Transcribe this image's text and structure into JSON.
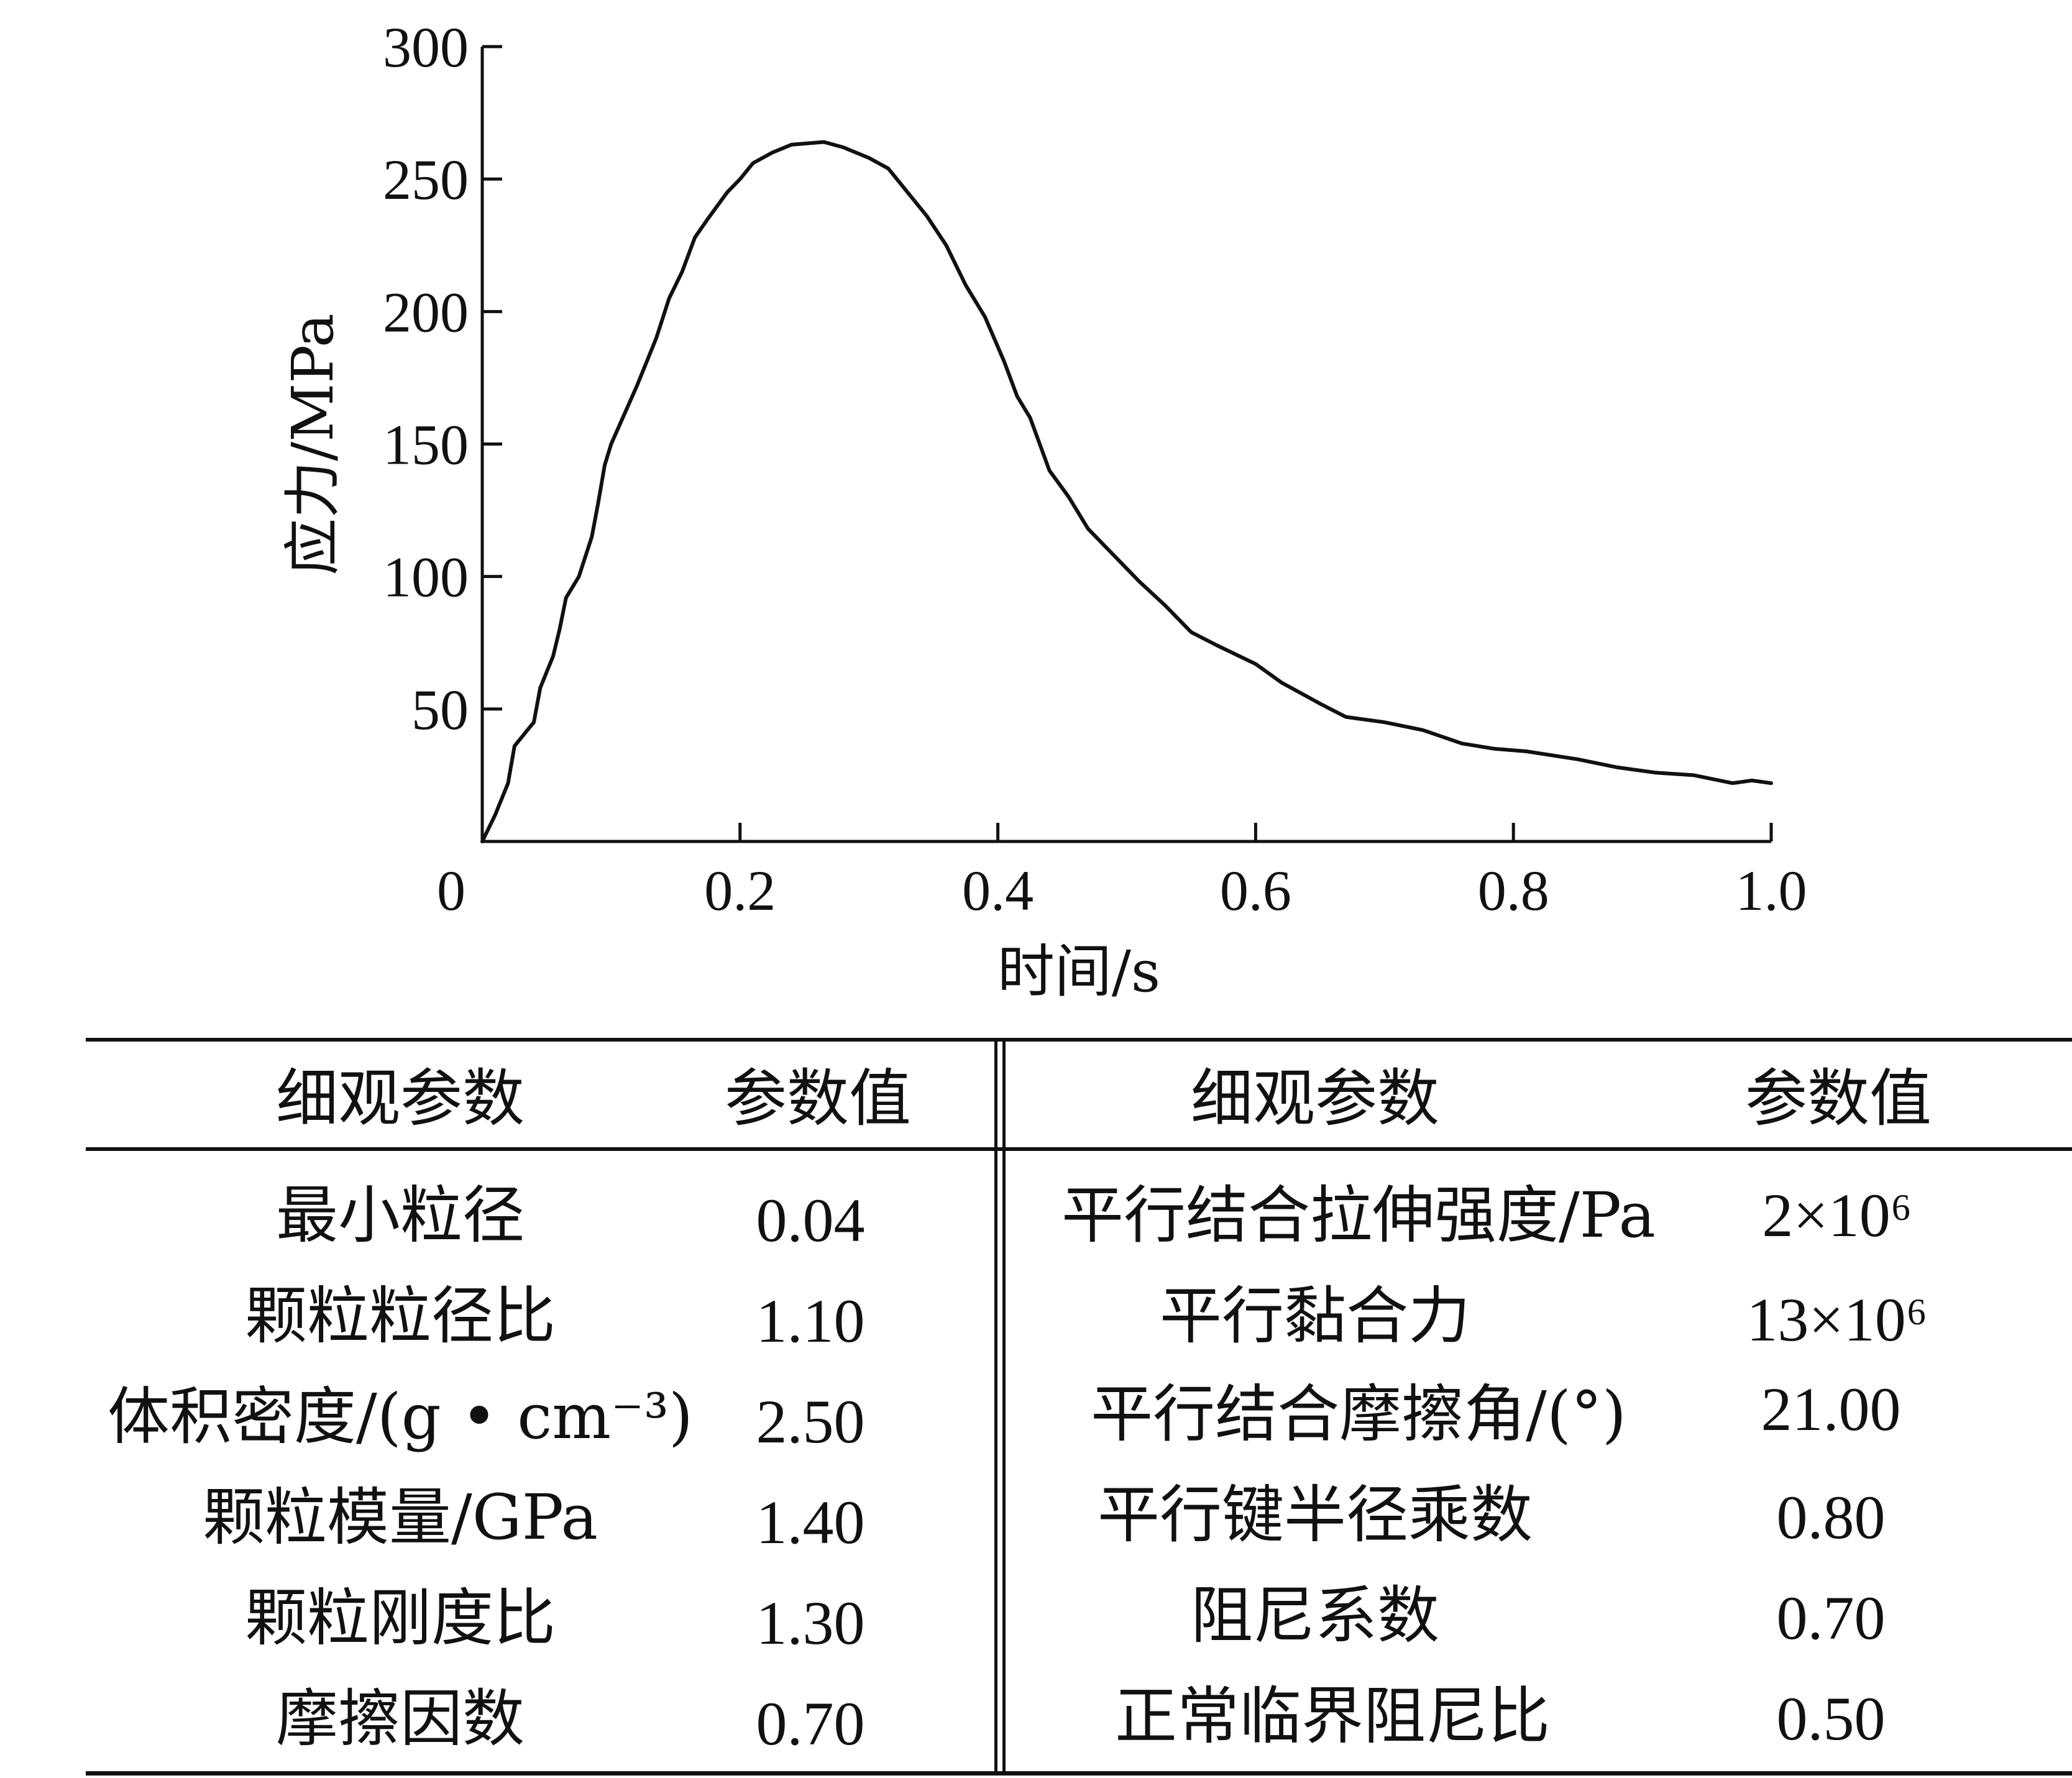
{
  "chart_data": {
    "type": "line",
    "title": "",
    "xlabel": "时间/s",
    "ylabel": "应力/MPa",
    "xlim": [
      0,
      1.0
    ],
    "ylim": [
      0,
      300
    ],
    "x_ticks": [
      0,
      0.2,
      0.4,
      0.6,
      0.8,
      1.0
    ],
    "x_tick_labels": [
      "0",
      "0.2",
      "0.4",
      "0.6",
      "0.8",
      "1.0"
    ],
    "y_ticks": [
      50,
      100,
      150,
      200,
      250,
      300
    ],
    "y_tick_labels": [
      "50",
      "100",
      "150",
      "200",
      "250",
      "300"
    ],
    "grid": false,
    "legend": "none",
    "series": [
      {
        "values": [
          [
            0.0,
            0
          ],
          [
            0.01,
            10
          ],
          [
            0.02,
            22
          ],
          [
            0.025,
            36
          ],
          [
            0.035,
            42
          ],
          [
            0.04,
            45
          ],
          [
            0.045,
            58
          ],
          [
            0.055,
            70
          ],
          [
            0.06,
            80
          ],
          [
            0.065,
            92
          ],
          [
            0.075,
            100
          ],
          [
            0.085,
            115
          ],
          [
            0.09,
            128
          ],
          [
            0.095,
            142
          ],
          [
            0.1,
            150
          ],
          [
            0.12,
            172
          ],
          [
            0.135,
            190
          ],
          [
            0.145,
            205
          ],
          [
            0.155,
            215
          ],
          [
            0.165,
            228
          ],
          [
            0.175,
            235
          ],
          [
            0.19,
            245
          ],
          [
            0.2,
            250
          ],
          [
            0.21,
            256
          ],
          [
            0.225,
            260
          ],
          [
            0.24,
            263
          ],
          [
            0.265,
            264
          ],
          [
            0.28,
            262
          ],
          [
            0.3,
            258
          ],
          [
            0.315,
            254
          ],
          [
            0.33,
            245
          ],
          [
            0.345,
            236
          ],
          [
            0.36,
            225
          ],
          [
            0.375,
            210
          ],
          [
            0.39,
            198
          ],
          [
            0.405,
            181
          ],
          [
            0.415,
            168
          ],
          [
            0.425,
            160
          ],
          [
            0.44,
            140
          ],
          [
            0.455,
            130
          ],
          [
            0.47,
            118
          ],
          [
            0.49,
            108
          ],
          [
            0.51,
            98
          ],
          [
            0.53,
            89
          ],
          [
            0.55,
            79
          ],
          [
            0.57,
            74
          ],
          [
            0.6,
            67
          ],
          [
            0.62,
            60
          ],
          [
            0.65,
            52
          ],
          [
            0.67,
            47
          ],
          [
            0.7,
            45
          ],
          [
            0.73,
            42
          ],
          [
            0.76,
            37
          ],
          [
            0.785,
            35
          ],
          [
            0.81,
            34
          ],
          [
            0.85,
            31
          ],
          [
            0.88,
            28
          ],
          [
            0.91,
            26
          ],
          [
            0.94,
            25
          ],
          [
            0.97,
            22
          ],
          [
            0.985,
            23
          ],
          [
            1.0,
            22
          ]
        ]
      }
    ]
  },
  "table": {
    "headers": {
      "left_param": "细观参数",
      "left_value": "参数值",
      "right_param": "细观参数",
      "right_value": "参数值"
    },
    "left_rows": [
      {
        "param": "最小粒径",
        "value": "0.04"
      },
      {
        "param": "颗粒粒径比",
        "value": "1.10"
      },
      {
        "param": "体积密度/(g • cm⁻³)",
        "value": "2.50"
      },
      {
        "param": "颗粒模量/GPa",
        "value": "1.40"
      },
      {
        "param": "颗粒刚度比",
        "value": "1.30"
      },
      {
        "param": "摩擦因数",
        "value": "0.70"
      }
    ],
    "right_rows": [
      {
        "param": "平行结合拉伸强度/Pa",
        "value": "2×10⁶"
      },
      {
        "param": "平行黏合力",
        "value": "13×10⁶"
      },
      {
        "param": "平行结合摩擦角/(°)",
        "value": "21.00"
      },
      {
        "param": "平行键半径乘数",
        "value": "0.80"
      },
      {
        "param": "阻尼系数",
        "value": "0.70"
      },
      {
        "param": "正常临界阻尼比",
        "value": "0.50"
      }
    ]
  }
}
